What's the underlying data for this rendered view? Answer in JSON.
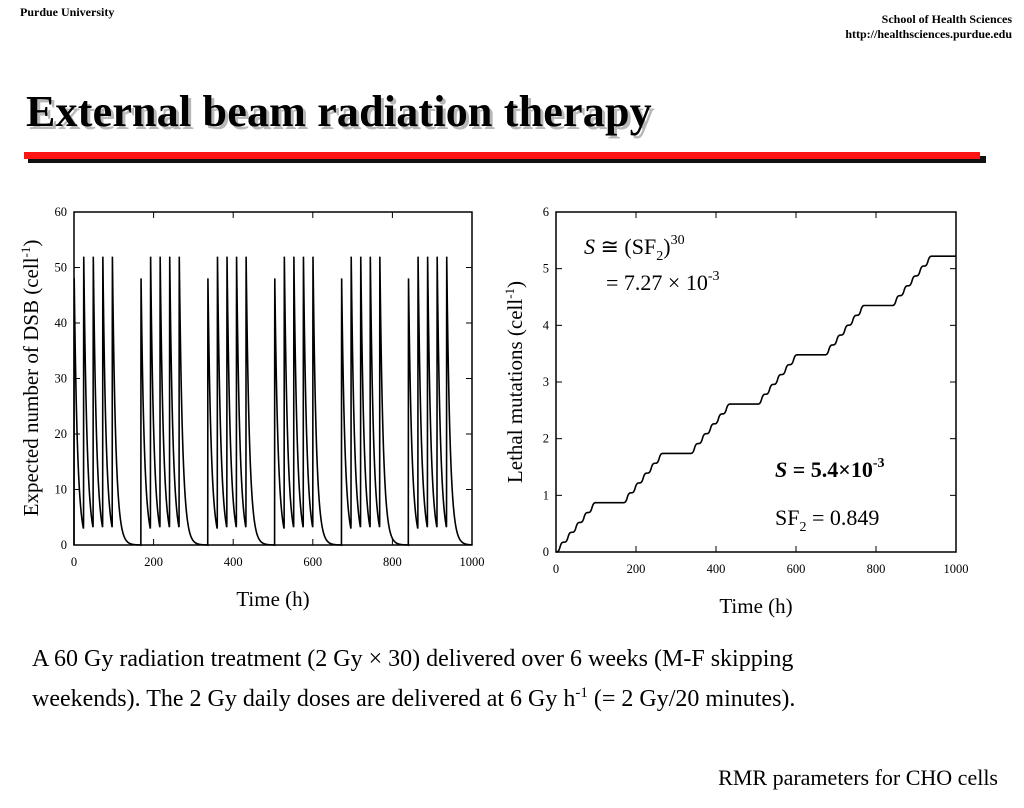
{
  "header": {
    "left": "Purdue University",
    "right_line1": "School of Health Sciences",
    "right_line2": "http://healthsciences.purdue.edu"
  },
  "title": "External beam radiation therapy",
  "caption": {
    "line1": "A 60 Gy radiation treatment (2 Gy × 30) delivered over 6 weeks (M-F skipping",
    "line2a": "weekends).  The 2 Gy daily doses are delivered at 6 Gy h",
    "line2_sup": "-1",
    "line2b": " (= 2 Gy/20 minutes)."
  },
  "footer": "RMR parameters for CHO cells",
  "colors": {
    "accent_rule": "#ff1414",
    "curve": "#000000"
  },
  "chart_data": [
    {
      "type": "line",
      "xlabel": "Time (h)",
      "ylabel": "Expected number of DSB (cell",
      "ylabel_sup": "-1",
      "ylabel_end": ")",
      "xlim": [
        0,
        1000
      ],
      "ylim": [
        0,
        60
      ],
      "xticks": [
        "0",
        "200",
        "400",
        "600",
        "800",
        "1000"
      ],
      "yticks": [
        "0",
        "10",
        "20",
        "30",
        "40",
        "50",
        "60"
      ],
      "grid": false,
      "series": [
        {
          "dose_times_h": [
            0,
            24,
            48,
            72,
            96,
            168,
            192,
            216,
            240,
            264,
            336,
            360,
            384,
            408,
            432,
            504,
            528,
            552,
            576,
            600,
            672,
            696,
            720,
            744,
            768,
            840,
            864,
            888,
            912,
            936
          ],
          "first_peak": 49,
          "later_peak": 53,
          "trough_between_doses": 4,
          "baseline": 0
        }
      ]
    },
    {
      "type": "line",
      "xlabel": "Time (h)",
      "ylabel": "Lethal mutations (cell",
      "ylabel_sup": "-1",
      "ylabel_end": ")",
      "xlim": [
        0,
        1000
      ],
      "ylim": [
        0,
        6
      ],
      "xticks": [
        "0",
        "200",
        "400",
        "600",
        "800",
        "1000"
      ],
      "yticks": [
        "0",
        "1",
        "2",
        "3",
        "4",
        "5",
        "6"
      ],
      "grid": false,
      "series": [
        {
          "x": [
            0,
            100,
            168,
            268,
            336,
            436,
            504,
            604,
            672,
            772,
            840,
            940,
            1000
          ],
          "y": [
            0,
            0.87,
            0.87,
            1.74,
            1.74,
            2.61,
            2.61,
            3.48,
            3.48,
            4.35,
            4.35,
            5.22,
            5.22
          ]
        }
      ],
      "annotations": {
        "calc_S": "S",
        "calc_rest": " ≅ (SF",
        "calc_sub": "2",
        "calc_close": ")",
        "calc_sup": "30",
        "calc_line2": "= 7.27 × 10",
        "calc_line2_sup": "-3",
        "result_S": "S",
        "result_rest": " = 5.4×10",
        "result_sup": "-3",
        "sf_main": "SF",
        "sf_sub": "2",
        "sf_value": " = 0.849"
      }
    }
  ]
}
